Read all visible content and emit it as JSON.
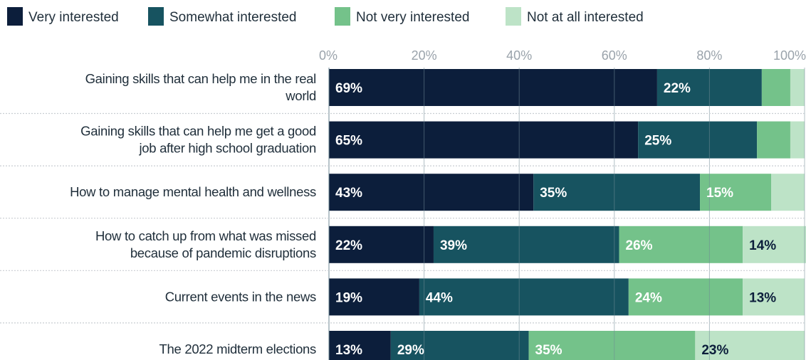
{
  "colors": {
    "very": "#0c1e3b",
    "somewhat": "#175360",
    "not_very": "#74c28a",
    "not_at_all": "#bde3c7",
    "grid": "#6f8a96",
    "separator": "#c9ced2",
    "label_light": "#ffffff",
    "label_dark": "#0c1e3b"
  },
  "chart_data": {
    "type": "bar",
    "orientation": "horizontal",
    "stacked": true,
    "xlim": [
      0,
      100
    ],
    "x_ticks": [
      "0%",
      "20%",
      "40%",
      "60%",
      "80%",
      "100%"
    ],
    "grid": true,
    "legend_position": "top-left",
    "categories": [
      [
        "Gaining skills that can help me in the real",
        "world"
      ],
      [
        "Gaining skills that can help me get a good",
        "job after high school graduation"
      ],
      [
        "How to manage mental health and wellness"
      ],
      [
        "How to catch up from what was missed",
        "because of pandemic disruptions"
      ],
      [
        "Current events in the news"
      ],
      [
        "The 2022 midterm elections"
      ]
    ],
    "series": [
      {
        "name": "Very interested",
        "color_key": "very",
        "label_color_key": "label_light",
        "values": [
          69,
          65,
          43,
          22,
          19,
          13
        ],
        "labels": [
          "69%",
          "65%",
          "43%",
          "22%",
          "19%",
          "13%"
        ]
      },
      {
        "name": "Somewhat  interested",
        "color_key": "somewhat",
        "label_color_key": "label_light",
        "values": [
          22,
          25,
          35,
          39,
          44,
          29
        ],
        "labels": [
          "22%",
          "25%",
          "35%",
          "39%",
          "44%",
          "29%"
        ]
      },
      {
        "name": "Not very interested",
        "color_key": "not_very",
        "label_color_key": "label_light",
        "values": [
          6,
          7,
          15,
          26,
          24,
          35
        ],
        "labels": [
          "",
          "",
          "15%",
          "26%",
          "24%",
          "35%"
        ]
      },
      {
        "name": "Not at all interested",
        "color_key": "not_at_all",
        "label_color_key": "label_dark",
        "values": [
          3,
          3,
          7,
          14,
          13,
          23
        ],
        "labels": [
          "",
          "",
          "",
          "14%",
          "13%",
          "23%"
        ]
      }
    ]
  }
}
